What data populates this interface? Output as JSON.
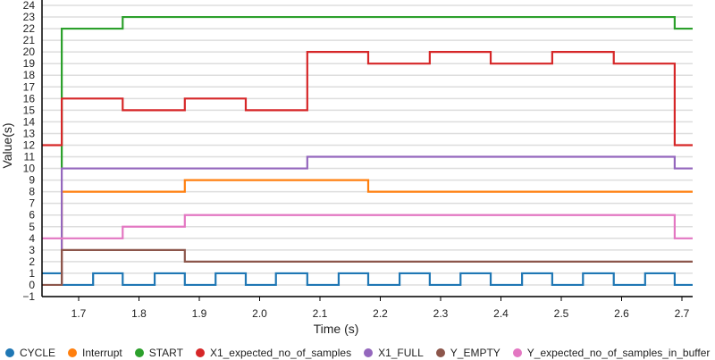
{
  "chart_data": {
    "type": "line",
    "step": true,
    "title": "",
    "xlabel": "Time (s)",
    "ylabel": "Value(s)",
    "xlim": [
      1.639,
      2.718
    ],
    "ylim": [
      -1,
      24
    ],
    "xticks": [
      1.7,
      1.8,
      1.9,
      2.0,
      2.1,
      2.2,
      2.3,
      2.4,
      2.5,
      2.6,
      2.7
    ],
    "xtick_labels": [
      "1.7",
      "1.8",
      "1.9",
      "2.0",
      "2.1",
      "2.2",
      "2.3",
      "2.4",
      "2.5",
      "2.6",
      "2.7"
    ],
    "yticks": [
      -1,
      0,
      1,
      2,
      3,
      4,
      5,
      6,
      7,
      8,
      9,
      10,
      11,
      12,
      13,
      14,
      15,
      16,
      17,
      18,
      19,
      20,
      21,
      22,
      23,
      24
    ],
    "grid": true,
    "legend_position": "bottom",
    "series": [
      {
        "name": "CYCLE",
        "color": "#1f77b4",
        "points": [
          [
            1.639,
            1
          ],
          [
            1.672,
            0
          ],
          [
            1.724,
            1
          ],
          [
            1.773,
            0
          ],
          [
            1.826,
            1
          ],
          [
            1.876,
            0
          ],
          [
            1.927,
            1
          ],
          [
            1.977,
            0
          ],
          [
            2.027,
            1
          ],
          [
            2.079,
            0
          ],
          [
            2.131,
            1
          ],
          [
            2.18,
            0
          ],
          [
            2.232,
            1
          ],
          [
            2.282,
            0
          ],
          [
            2.333,
            1
          ],
          [
            2.383,
            0
          ],
          [
            2.435,
            1
          ],
          [
            2.485,
            0
          ],
          [
            2.536,
            1
          ],
          [
            2.587,
            0
          ],
          [
            2.639,
            1
          ],
          [
            2.688,
            0
          ],
          [
            2.718,
            0
          ]
        ]
      },
      {
        "name": "Interrupt",
        "color": "#ff7f0e",
        "points": [
          [
            1.672,
            0
          ],
          [
            1.672,
            8
          ],
          [
            1.876,
            9
          ],
          [
            2.18,
            8
          ],
          [
            2.718,
            8
          ]
        ]
      },
      {
        "name": "START",
        "color": "#2ca02c",
        "points": [
          [
            1.672,
            10
          ],
          [
            1.672,
            22
          ],
          [
            1.773,
            23
          ],
          [
            2.688,
            22
          ],
          [
            2.718,
            22
          ]
        ]
      },
      {
        "name": "X1_expected_no_of_samples",
        "color": "#d62728",
        "points": [
          [
            1.639,
            12
          ],
          [
            1.672,
            16
          ],
          [
            1.773,
            15
          ],
          [
            1.876,
            16
          ],
          [
            1.977,
            15
          ],
          [
            2.079,
            20
          ],
          [
            2.18,
            19
          ],
          [
            2.282,
            20
          ],
          [
            2.383,
            19
          ],
          [
            2.485,
            20
          ],
          [
            2.587,
            19
          ],
          [
            2.688,
            12
          ],
          [
            2.718,
            12
          ]
        ]
      },
      {
        "name": "X1_FULL",
        "color": "#9467bd",
        "points": [
          [
            1.672,
            0
          ],
          [
            1.672,
            10
          ],
          [
            2.079,
            11
          ],
          [
            2.688,
            10
          ],
          [
            2.718,
            10
          ]
        ]
      },
      {
        "name": "Y_EMPTY",
        "color": "#8c564b",
        "points": [
          [
            1.639,
            0
          ],
          [
            1.672,
            3
          ],
          [
            1.876,
            2
          ],
          [
            2.718,
            2
          ]
        ]
      },
      {
        "name": "Y_expected_no_of_samples_in_buffer",
        "color": "#e377c2",
        "points": [
          [
            1.639,
            4
          ],
          [
            1.773,
            5
          ],
          [
            1.876,
            6
          ],
          [
            2.688,
            4
          ],
          [
            2.718,
            4
          ]
        ]
      }
    ]
  },
  "legend": {
    "items": [
      {
        "label": "CYCLE",
        "color": "#1f77b4"
      },
      {
        "label": "Interrupt",
        "color": "#ff7f0e"
      },
      {
        "label": "START",
        "color": "#2ca02c"
      },
      {
        "label": "X1_expected_no_of_samples",
        "color": "#d62728"
      },
      {
        "label": "X1_FULL",
        "color": "#9467bd"
      },
      {
        "label": "Y_EMPTY",
        "color": "#8c564b"
      },
      {
        "label": "Y_expected_no_of_samples_in_buffer",
        "color": "#e377c2"
      }
    ]
  }
}
